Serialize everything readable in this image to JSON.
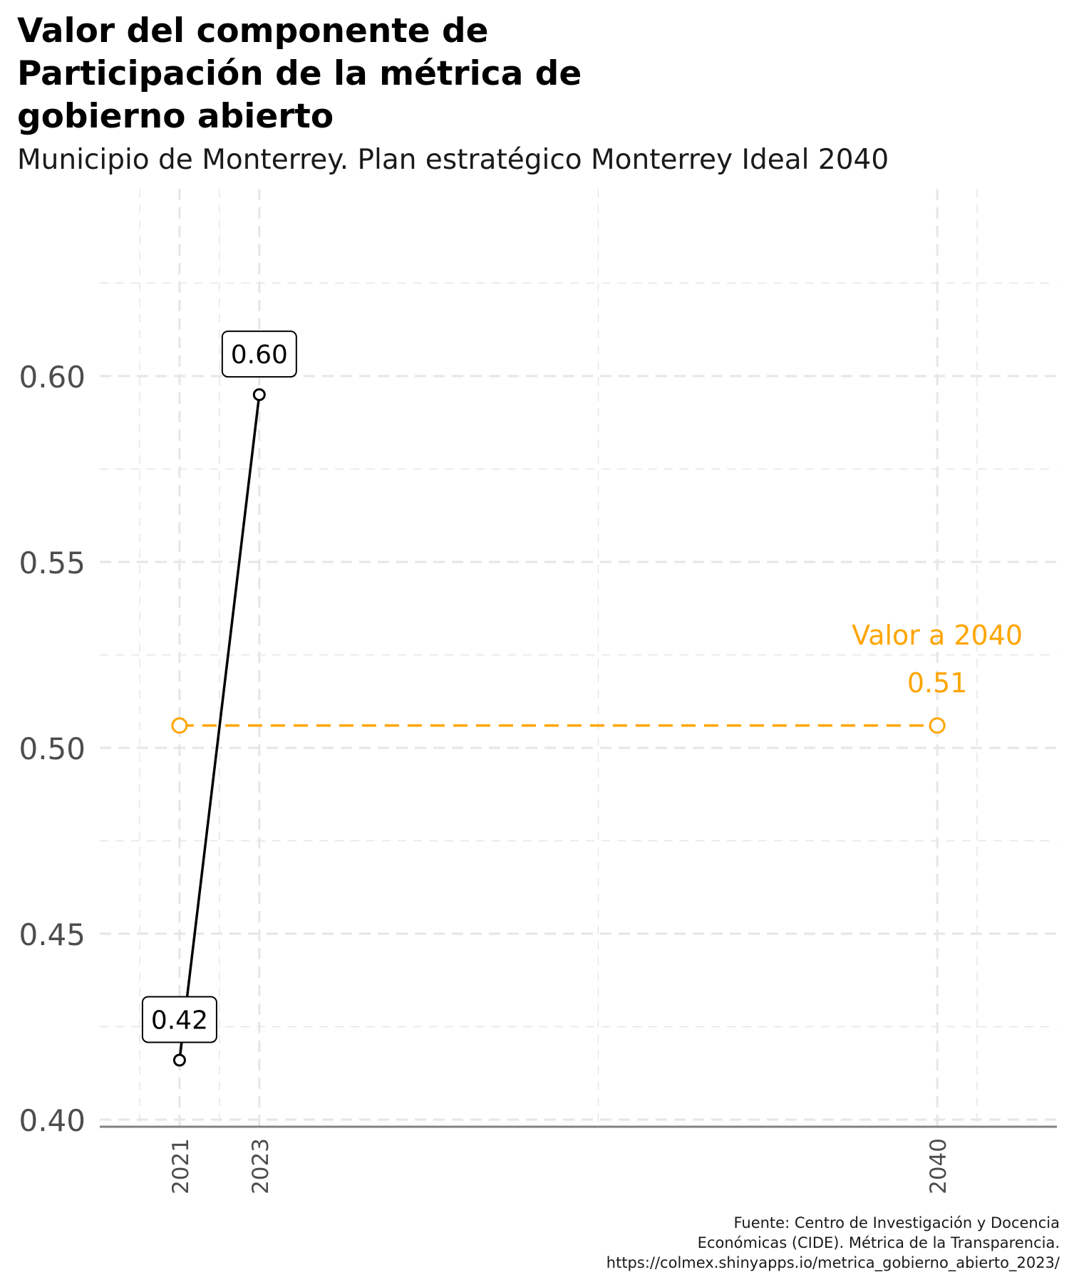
{
  "title": "Valor del componente de\nParticipación de la métrica de\ngobierno abierto",
  "subtitle": "Municipio de Monterrey. Plan estratégico Monterrey Ideal 2040",
  "caption": [
    "Fuente: Centro de Investigación y Docencia",
    "Económicas (CIDE). Métrica de la Transparencia.",
    "https://colmex.shinyapps.io/metrica_gobierno_abierto_2023/"
  ],
  "chart_data": {
    "type": "line",
    "x_ticks": [
      2021,
      2023,
      2040
    ],
    "y_ticks": [
      0.4,
      0.45,
      0.5,
      0.55,
      0.6
    ],
    "y_tick_labels": [
      "0.40",
      "0.45",
      "0.50",
      "0.55",
      "0.60"
    ],
    "xlim": [
      2019,
      2043
    ],
    "ylim": [
      0.4,
      0.63
    ],
    "grid": true,
    "series": [
      {
        "x": [
          2021,
          2023
        ],
        "y": [
          0.416,
          0.595
        ],
        "labels": [
          "0.42",
          "0.60"
        ],
        "color": "#000000"
      },
      {
        "x": [
          2021,
          2040
        ],
        "y": [
          0.506,
          0.506
        ],
        "color": "#FFA500",
        "dashed": true
      }
    ],
    "annotation": {
      "text_line1": "Valor a 2040",
      "text_line2": "0.51",
      "x": 2040,
      "color": "#FFA500"
    }
  }
}
